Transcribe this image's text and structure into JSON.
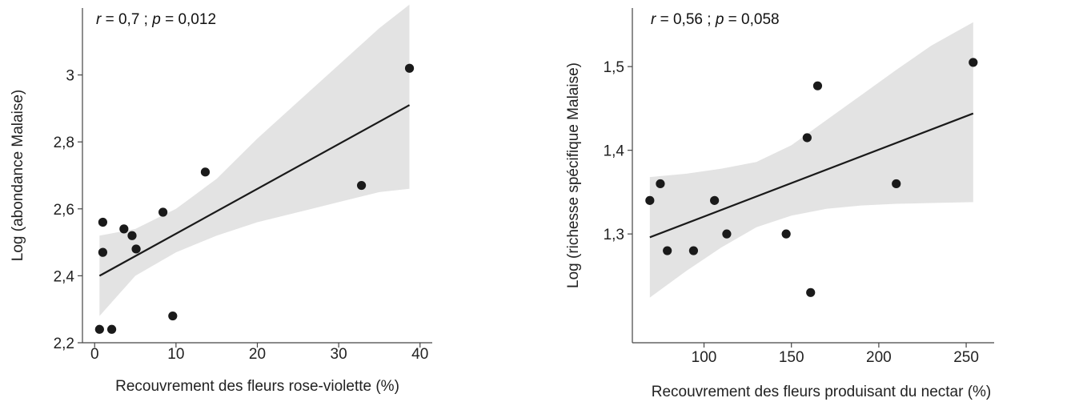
{
  "colors": {
    "background": "#ffffff",
    "band": "#e3e3e3",
    "line": "#1a1a1a",
    "point": "#1a1a1a",
    "axis": "#444444"
  },
  "chart_data": [
    {
      "type": "scatter",
      "annotation": {
        "r_symbol": "r",
        "r_value": " = 0,7 ; ",
        "p_symbol": "p",
        "p_value": " = 0,012"
      },
      "xlabel": "Recouvrement des fleurs rose-violette (%)",
      "ylabel": "Log (abondance Malaise)",
      "xlim": [
        -1.5,
        41.5
      ],
      "ylim": [
        2.2,
        3.2
      ],
      "x_ticks": [
        0,
        10,
        20,
        30,
        40
      ],
      "x_tick_labels": [
        "0",
        "10",
        "20",
        "30",
        "40"
      ],
      "y_ticks": [
        2.2,
        2.4,
        2.6,
        2.8,
        3.0
      ],
      "y_tick_labels": [
        "2,2",
        "2,4",
        "2,6",
        "2,8",
        "3"
      ],
      "points": [
        {
          "x": 0.6,
          "y": 2.24
        },
        {
          "x": 1.0,
          "y": 2.56
        },
        {
          "x": 1.0,
          "y": 2.47
        },
        {
          "x": 2.1,
          "y": 2.24
        },
        {
          "x": 3.6,
          "y": 2.54
        },
        {
          "x": 4.6,
          "y": 2.52
        },
        {
          "x": 5.1,
          "y": 2.48
        },
        {
          "x": 8.4,
          "y": 2.59
        },
        {
          "x": 9.6,
          "y": 2.28
        },
        {
          "x": 13.6,
          "y": 2.71
        },
        {
          "x": 32.8,
          "y": 2.67
        },
        {
          "x": 38.7,
          "y": 3.02
        }
      ],
      "fit": {
        "x": [
          0.6,
          38.7
        ],
        "y": [
          2.4,
          2.91
        ]
      },
      "band": {
        "x": [
          0.6,
          5,
          10,
          15,
          20,
          25,
          30,
          35,
          38.7
        ],
        "upper": [
          2.52,
          2.54,
          2.6,
          2.69,
          2.81,
          2.92,
          3.03,
          3.14,
          3.21
        ],
        "lower": [
          2.28,
          2.4,
          2.47,
          2.52,
          2.56,
          2.59,
          2.62,
          2.65,
          2.66
        ]
      },
      "grid": false
    },
    {
      "type": "scatter",
      "annotation": {
        "r_symbol": "r",
        "r_value": " = 0,56 ; ",
        "p_symbol": "p",
        "p_value": " = 0,058"
      },
      "xlabel": "Recouvrement des fleurs produisant du nectar (%)",
      "ylabel": "Log (richesse spécifique Malaise)",
      "xlim": [
        59,
        266
      ],
      "ylim": [
        1.17,
        1.57
      ],
      "x_ticks": [
        100,
        150,
        200,
        250
      ],
      "x_tick_labels": [
        "100",
        "150",
        "200",
        "250"
      ],
      "y_ticks": [
        1.3,
        1.4,
        1.5
      ],
      "y_tick_labels": [
        "1,3",
        "1,4",
        "1,5"
      ],
      "points": [
        {
          "x": 69,
          "y": 1.34
        },
        {
          "x": 75,
          "y": 1.36
        },
        {
          "x": 79,
          "y": 1.28
        },
        {
          "x": 94,
          "y": 1.28
        },
        {
          "x": 106,
          "y": 1.34
        },
        {
          "x": 113,
          "y": 1.3
        },
        {
          "x": 147,
          "y": 1.3
        },
        {
          "x": 159,
          "y": 1.415
        },
        {
          "x": 161,
          "y": 1.23
        },
        {
          "x": 165,
          "y": 1.477
        },
        {
          "x": 210,
          "y": 1.36
        },
        {
          "x": 254,
          "y": 1.505
        }
      ],
      "fit": {
        "x": [
          69,
          254
        ],
        "y": [
          1.296,
          1.444
        ]
      },
      "band": {
        "x": [
          69,
          90,
          110,
          130,
          150,
          170,
          190,
          210,
          230,
          254
        ],
        "upper": [
          1.368,
          1.372,
          1.378,
          1.386,
          1.406,
          1.436,
          1.466,
          1.496,
          1.525,
          1.553
        ],
        "lower": [
          1.224,
          1.256,
          1.284,
          1.308,
          1.322,
          1.33,
          1.334,
          1.336,
          1.337,
          1.338
        ]
      },
      "grid": false
    }
  ]
}
